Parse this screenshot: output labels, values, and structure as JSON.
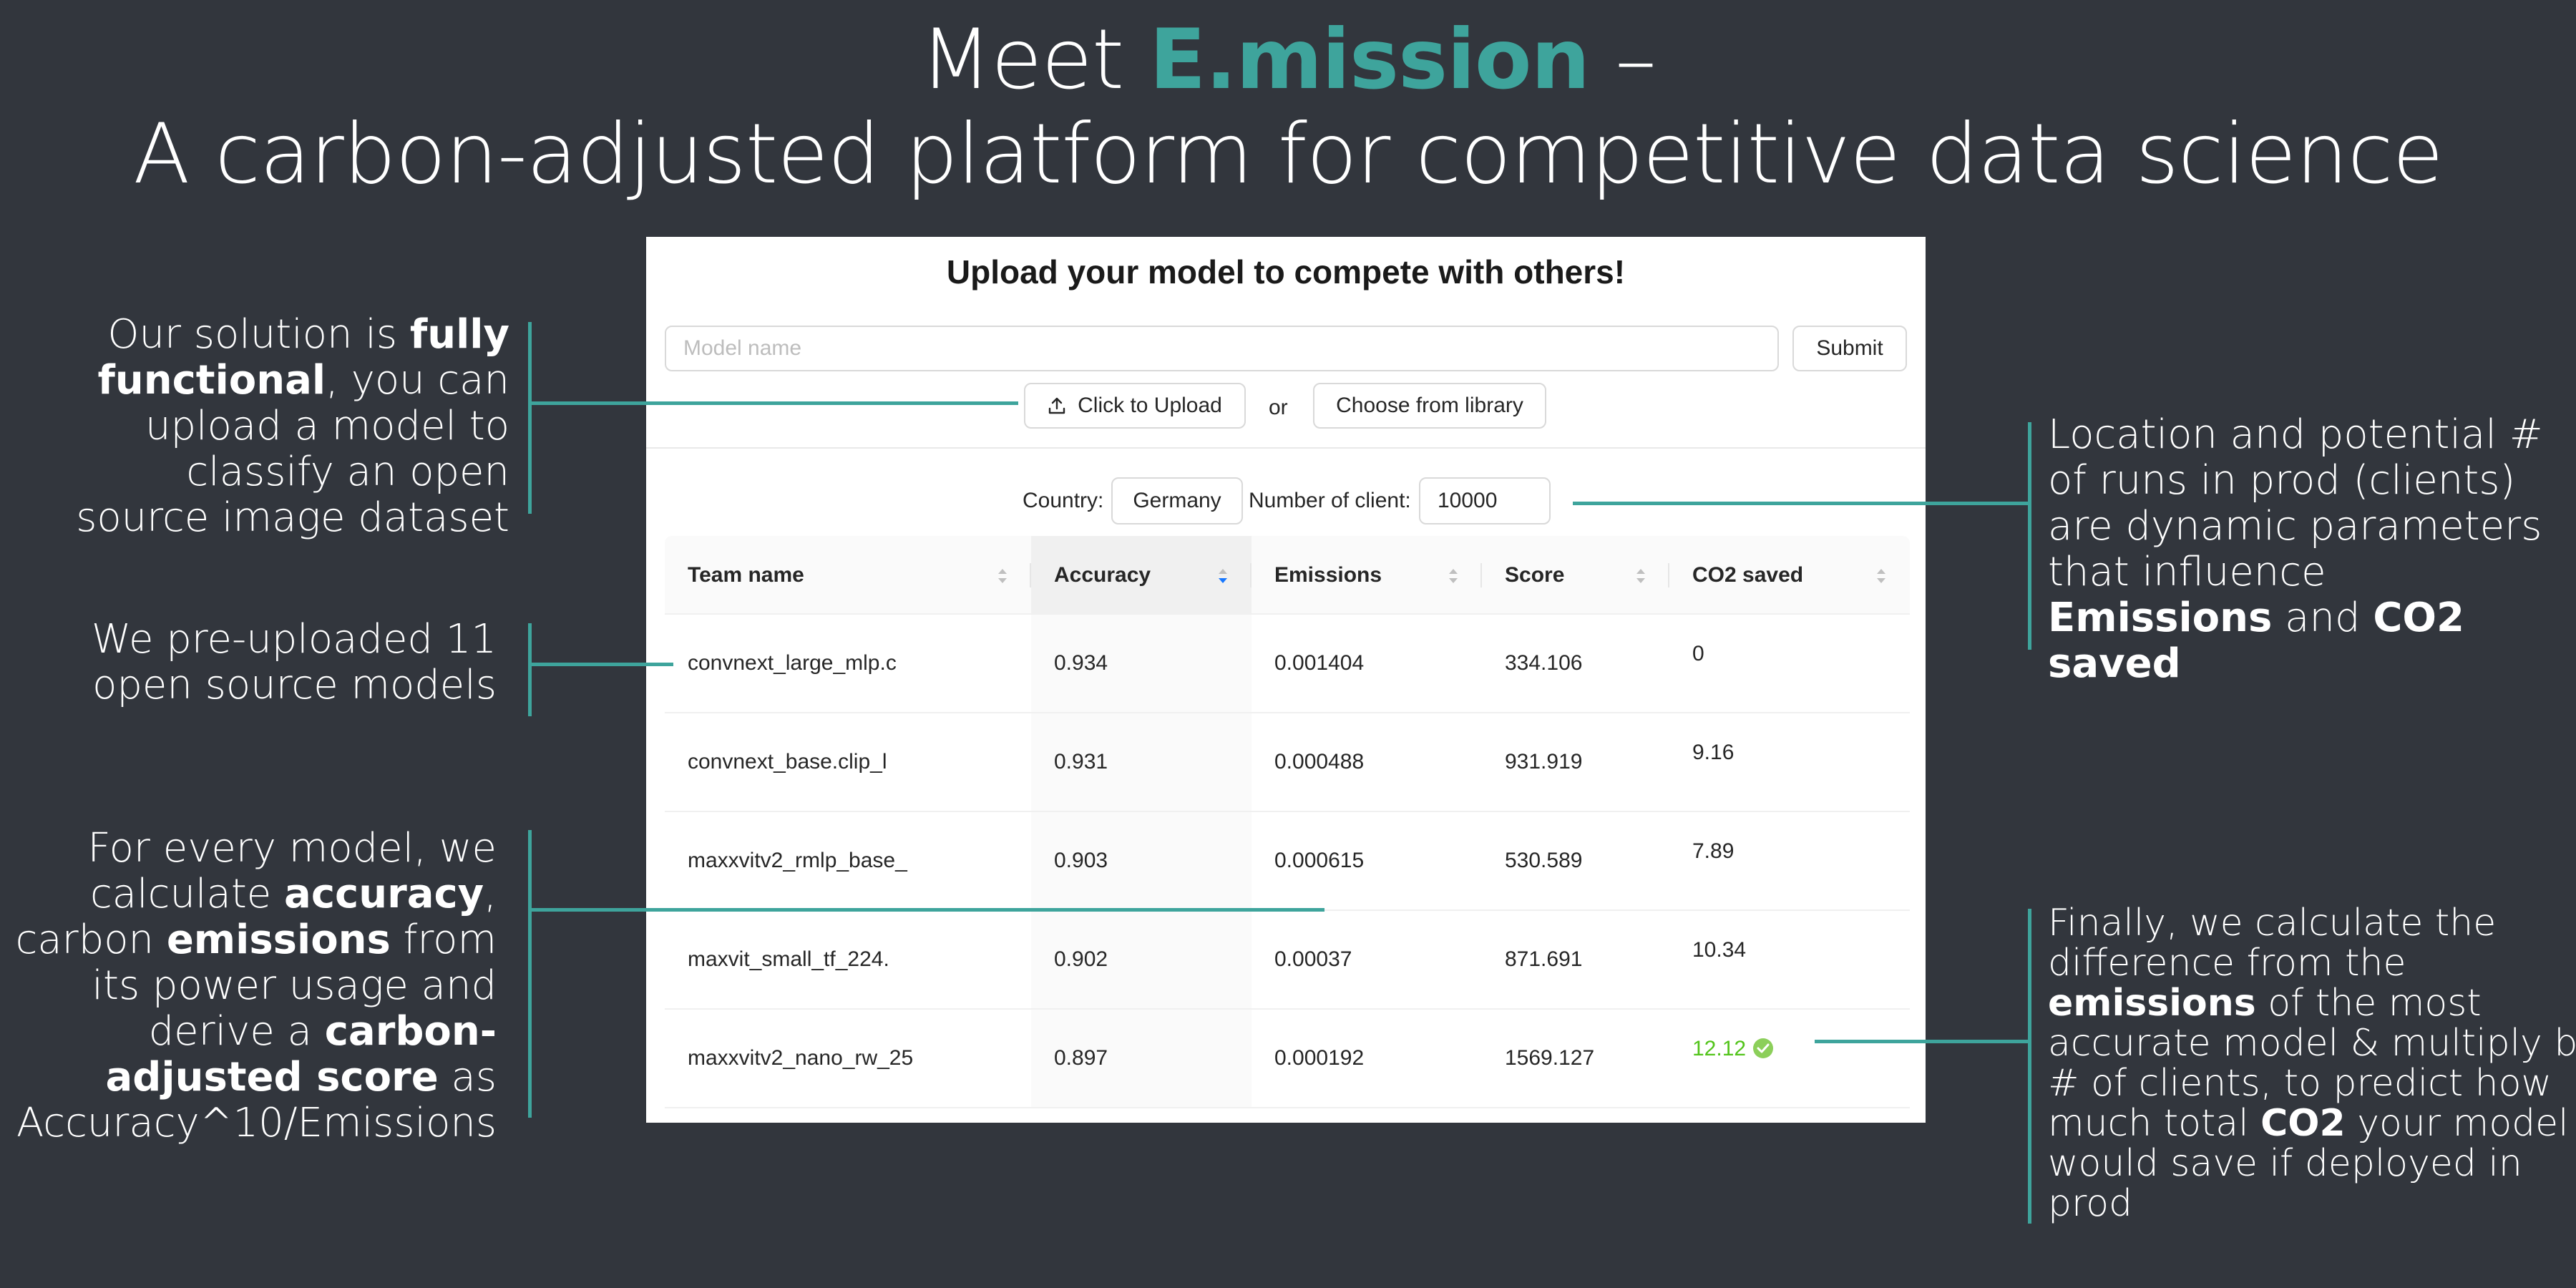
{
  "title": {
    "prefix": "Meet ",
    "brand": "E.mission",
    "suffix": " –",
    "subtitle": "A carbon-adjusted platform for competitive data science"
  },
  "panel": {
    "heading": "Upload your model to compete with others!",
    "model_input_placeholder": "Model name",
    "submit_label": "Submit",
    "upload_label": "Click to Upload",
    "or_label": "or",
    "library_label": "Choose from library",
    "country_label": "Country:",
    "country_value": "Germany",
    "clients_label": "Number of client:",
    "clients_value": "10000"
  },
  "table": {
    "columns": [
      "Team name",
      "Accuracy",
      "Emissions",
      "Score",
      "CO2 saved"
    ],
    "sorted_column": "Accuracy",
    "rows": [
      [
        "convnext_large_mlp.c",
        "0.934",
        "0.001404",
        "334.106",
        "0"
      ],
      [
        "convnext_base.clip_l",
        "0.931",
        "0.000488",
        "931.919",
        "9.16"
      ],
      [
        "maxxvitv2_rmlp_base_",
        "0.903",
        "0.000615",
        "530.589",
        "7.89"
      ],
      [
        "maxvit_small_tf_224.",
        "0.902",
        "0.00037",
        "871.691",
        "10.34"
      ],
      [
        "maxxvitv2_nano_rw_25",
        "0.897",
        "0.000192",
        "1569.127",
        "12.12"
      ]
    ]
  },
  "notes": {
    "n1": {
      "l1a": "Our solution is ",
      "l1b": "fully",
      "l2a": "functional",
      "l2b": ", you can",
      "l3": "upload a model to",
      "l4": "classify an open",
      "l5": "source image dataset"
    },
    "n2": {
      "l1": "We pre-uploaded 11",
      "l2": "open source models"
    },
    "n3": {
      "l1": "For every model, we",
      "l2a": "calculate ",
      "l2b": "accuracy",
      "l2c": ",",
      "l3a": "carbon ",
      "l3b": "emissions",
      "l3c": " from",
      "l4": "its power usage and",
      "l5a": "derive a ",
      "l5b": "carbon-",
      "l6a": "adjusted score",
      "l6b": " as",
      "l7": "Accuracy^10/Emissions"
    },
    "n4": {
      "l1": "Location and potential #",
      "l2": "of runs in prod (clients)",
      "l3": "are dynamic parameters",
      "l4": "that influence",
      "l5a": "Emissions",
      "l5b": " and ",
      "l5c": "CO2",
      "l6": "saved"
    },
    "n5": {
      "l1": "Finally, we calculate the",
      "l2": "difference from the",
      "l3a": "emissions",
      "l3b": " of the most",
      "l4": "accurate model & multiply by",
      "l5": "# of clients, to predict how",
      "l6a": "much total ",
      "l6b": "CO2",
      "l6c": " your model",
      "l7": "would save if deployed in",
      "l8": "prod"
    }
  },
  "colors": {
    "background": "#32363d",
    "brand": "#3ea49c",
    "best_co2": "#52c41a"
  }
}
